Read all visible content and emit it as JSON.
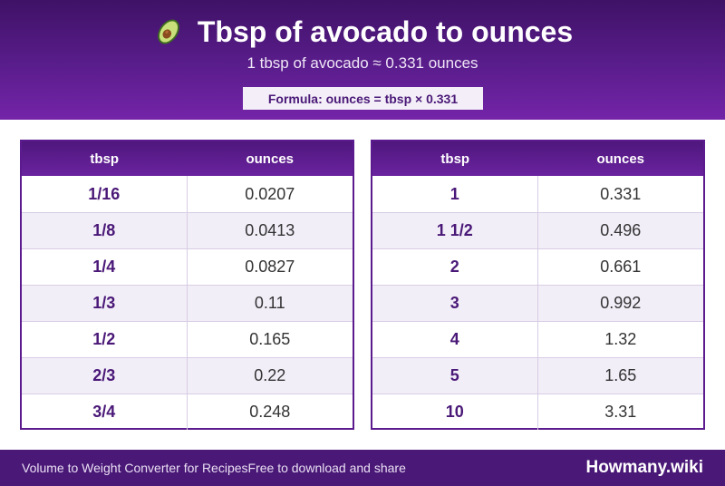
{
  "header": {
    "title": "Tbsp of avocado to ounces",
    "icon": "avocado-icon",
    "subtitle": "1 tbsp of avocado ≈ 0.331 ounces",
    "formula": "Formula: ounces = tbsp × 0.331",
    "colors": {
      "header_dark": "#3f1266",
      "header_light": "#7424a8",
      "accent": "#4a1877"
    }
  },
  "tables": [
    {
      "headers": [
        "tbsp",
        "ounces"
      ],
      "rows": [
        [
          "1/16",
          "0.0207"
        ],
        [
          "1/8",
          "0.0413"
        ],
        [
          "1/4",
          "0.0827"
        ],
        [
          "1/3",
          "0.11"
        ],
        [
          "1/2",
          "0.165"
        ],
        [
          "2/3",
          "0.22"
        ],
        [
          "3/4",
          "0.248"
        ]
      ]
    },
    {
      "headers": [
        "tbsp",
        "ounces"
      ],
      "rows": [
        [
          "1",
          "0.331"
        ],
        [
          "1 1/2",
          "0.496"
        ],
        [
          "2",
          "0.661"
        ],
        [
          "3",
          "0.992"
        ],
        [
          "4",
          "1.32"
        ],
        [
          "5",
          "1.65"
        ],
        [
          "10",
          "3.31"
        ]
      ]
    }
  ],
  "footer": {
    "left_text": "Volume to Weight Converter for Recipes",
    "share_text": "Free to download and share",
    "brand": "Howmany.wiki"
  }
}
